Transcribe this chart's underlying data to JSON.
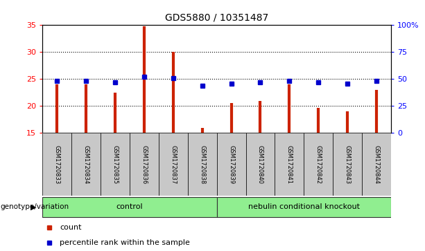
{
  "title": "GDS5880 / 10351487",
  "samples": [
    "GSM1720833",
    "GSM1720834",
    "GSM1720835",
    "GSM1720836",
    "GSM1720837",
    "GSM1720838",
    "GSM1720839",
    "GSM1720840",
    "GSM1720841",
    "GSM1720842",
    "GSM1720843",
    "GSM1720844"
  ],
  "counts": [
    24.0,
    24.0,
    22.5,
    34.8,
    30.0,
    16.0,
    20.5,
    21.0,
    24.0,
    19.7,
    19.0,
    23.0
  ],
  "percentiles": [
    48,
    48,
    47,
    52,
    51,
    44,
    46,
    47,
    48,
    47,
    46,
    48
  ],
  "ylim_left": [
    15,
    35
  ],
  "ylim_right": [
    0,
    100
  ],
  "yticks_left": [
    15,
    20,
    25,
    30,
    35
  ],
  "yticks_right": [
    0,
    25,
    50,
    75,
    100
  ],
  "bar_color": "#CC2200",
  "dot_color": "#0000CC",
  "control_color": "#90EE90",
  "knockout_color": "#90EE90",
  "sample_bg_color": "#C8C8C8",
  "plot_bg_color": "#FFFFFF",
  "grid_color": "#000000",
  "control_label": "control",
  "knockout_label": "nebulin conditional knockout",
  "genotype_label": "genotype/variation",
  "legend_count": "count",
  "legend_pct": "percentile rank within the sample",
  "control_samples": 6,
  "knockout_samples": 6
}
